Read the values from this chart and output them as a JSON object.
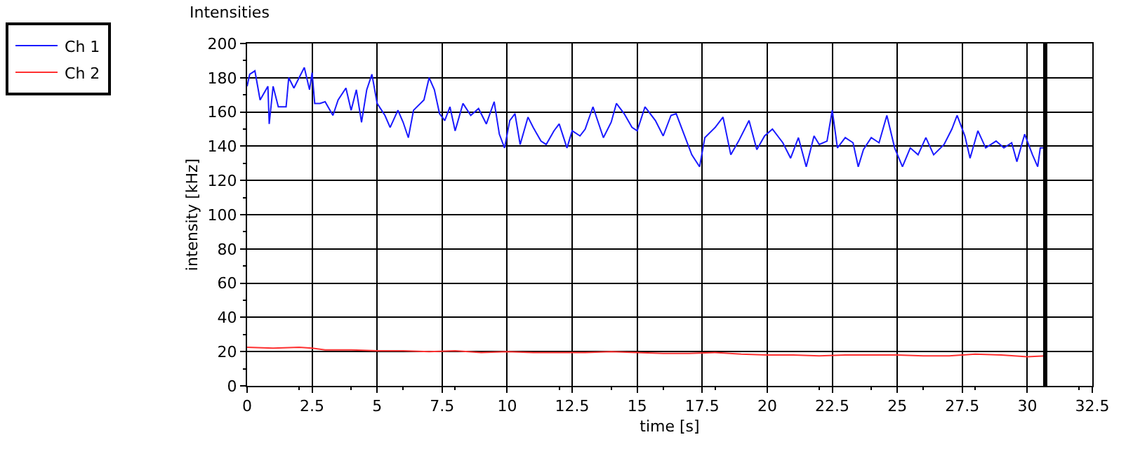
{
  "chart_data": {
    "type": "line",
    "title": "Intensities",
    "xlabel": "time [s]",
    "ylabel": "intensity [kHz]",
    "xlim": [
      0,
      32.5
    ],
    "xticks": [
      0,
      2.5,
      5,
      7.5,
      10,
      12.5,
      15,
      17.5,
      20,
      22.5,
      25,
      27.5,
      30,
      32.5
    ],
    "ylim": [
      0,
      200
    ],
    "yticks": [
      0,
      20,
      40,
      60,
      80,
      100,
      120,
      140,
      160,
      180,
      200
    ],
    "grid": true,
    "legend": "top left",
    "line_style": "solid",
    "ref_lines": [
      {
        "axis": "x",
        "value": 30.69,
        "color": "#000000"
      }
    ],
    "series": [
      {
        "name": "Ch 1",
        "color": "#1a1aff",
        "x": [
          0,
          0.1,
          0.3,
          0.5,
          0.8,
          0.85,
          1.0,
          1.2,
          1.5,
          1.6,
          1.8,
          2.0,
          2.2,
          2.4,
          2.5,
          2.6,
          2.8,
          3.0,
          3.3,
          3.5,
          3.8,
          4.0,
          4.2,
          4.4,
          4.6,
          4.8,
          5.0,
          5.3,
          5.5,
          5.8,
          6.0,
          6.2,
          6.4,
          6.8,
          7.0,
          7.2,
          7.4,
          7.6,
          7.8,
          8.0,
          8.3,
          8.6,
          8.9,
          9.2,
          9.5,
          9.7,
          9.9,
          10.1,
          10.3,
          10.5,
          10.8,
          11.0,
          11.3,
          11.5,
          11.8,
          12.0,
          12.3,
          12.5,
          12.8,
          13.0,
          13.3,
          13.7,
          14.0,
          14.2,
          14.5,
          14.8,
          15.0,
          15.3,
          15.4,
          15.7,
          16.0,
          16.3,
          16.5,
          16.8,
          17.1,
          17.4,
          17.6,
          18.0,
          18.3,
          18.6,
          18.9,
          19.3,
          19.6,
          19.9,
          20.2,
          20.6,
          20.9,
          21.2,
          21.5,
          21.8,
          22.0,
          22.3,
          22.5,
          22.7,
          23.0,
          23.3,
          23.5,
          23.7,
          24.0,
          24.3,
          24.6,
          24.9,
          25.2,
          25.5,
          25.8,
          26.1,
          26.4,
          26.8,
          27.1,
          27.3,
          27.6,
          27.8,
          28.1,
          28.4,
          28.8,
          29.1,
          29.4,
          29.6,
          29.9,
          30.2,
          30.4,
          30.5,
          30.7
        ],
        "values": [
          175,
          182,
          184,
          167,
          175,
          153,
          175,
          163,
          163,
          180,
          174,
          180,
          186,
          173,
          183,
          165,
          165,
          166,
          158,
          167,
          174,
          161,
          173,
          154,
          173,
          182,
          165,
          158,
          151,
          161,
          154,
          145,
          161,
          167,
          180,
          173,
          159,
          155,
          163,
          149,
          165,
          158,
          162,
          153,
          166,
          147,
          139,
          155,
          159,
          141,
          157,
          151,
          143,
          141,
          149,
          153,
          139,
          149,
          146,
          150,
          163,
          145,
          154,
          165,
          159,
          151,
          149,
          163,
          161,
          155,
          146,
          158,
          159,
          147,
          135,
          128,
          145,
          151,
          157,
          135,
          143,
          155,
          138,
          146,
          150,
          142,
          133,
          145,
          128,
          146,
          141,
          143,
          161,
          139,
          145,
          142,
          128,
          138,
          145,
          142,
          158,
          139,
          128,
          139,
          135,
          145,
          135,
          141,
          150,
          158,
          146,
          133,
          149,
          139,
          143,
          139,
          142,
          131,
          147,
          135,
          128,
          139,
          139
        ]
      },
      {
        "name": "Ch 2",
        "color": "#ff3030",
        "x": [
          0,
          1,
          2,
          2.5,
          3,
          4,
          5,
          6,
          7,
          8,
          9,
          10,
          11,
          12,
          13,
          14,
          15,
          16,
          17,
          18,
          19,
          20,
          21,
          22,
          23,
          24,
          25,
          26,
          27,
          28,
          29,
          30,
          30.7
        ],
        "values": [
          22.5,
          22,
          22.5,
          22,
          21,
          21,
          20.5,
          20.5,
          20,
          20.5,
          19.5,
          20,
          19.5,
          19.5,
          19.5,
          20,
          19.5,
          19,
          19,
          19.5,
          18.5,
          18,
          18,
          17.5,
          18,
          18,
          18,
          17.5,
          17.5,
          18.5,
          18,
          17,
          17.5
        ]
      }
    ]
  }
}
